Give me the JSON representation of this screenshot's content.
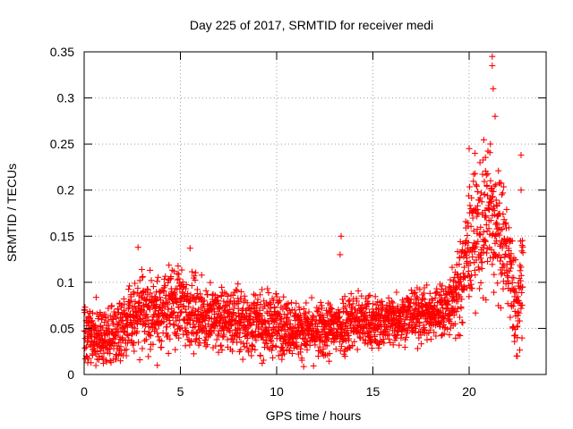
{
  "chart_data": {
    "type": "scatter",
    "title": "Day 225 of 2017, SRMTID for receiver medi",
    "xlabel": "GPS time / hours",
    "ylabel": "SRMTID / TECUs",
    "xlim": [
      0,
      24
    ],
    "ylim": [
      0,
      0.35
    ],
    "x_ticks": [
      0,
      5,
      10,
      15,
      20
    ],
    "x_tick_labels": [
      "0",
      "5",
      "10",
      "15",
      "20"
    ],
    "y_ticks": [
      0,
      0.05,
      0.1,
      0.15,
      0.2,
      0.25,
      0.3,
      0.35
    ],
    "y_tick_labels": [
      "0",
      "0.05",
      "0.1",
      "0.15",
      "0.2",
      "0.25",
      "0.3",
      "0.35"
    ],
    "grid": true,
    "marker": "plus",
    "color": "#ff0000",
    "data_range_hours": [
      0,
      22.8
    ],
    "trend": [
      {
        "x": 0.0,
        "mean": 0.045,
        "spread": 0.03
      },
      {
        "x": 1.0,
        "mean": 0.035,
        "spread": 0.025
      },
      {
        "x": 2.0,
        "mean": 0.055,
        "spread": 0.03
      },
      {
        "x": 3.0,
        "mean": 0.065,
        "spread": 0.035
      },
      {
        "x": 4.0,
        "mean": 0.07,
        "spread": 0.035
      },
      {
        "x": 5.0,
        "mean": 0.075,
        "spread": 0.04
      },
      {
        "x": 6.0,
        "mean": 0.065,
        "spread": 0.03
      },
      {
        "x": 7.0,
        "mean": 0.06,
        "spread": 0.03
      },
      {
        "x": 8.0,
        "mean": 0.06,
        "spread": 0.03
      },
      {
        "x": 9.0,
        "mean": 0.055,
        "spread": 0.03
      },
      {
        "x": 10.0,
        "mean": 0.055,
        "spread": 0.03
      },
      {
        "x": 11.0,
        "mean": 0.05,
        "spread": 0.025
      },
      {
        "x": 12.0,
        "mean": 0.045,
        "spread": 0.025
      },
      {
        "x": 13.0,
        "mean": 0.05,
        "spread": 0.03
      },
      {
        "x": 14.0,
        "mean": 0.06,
        "spread": 0.03
      },
      {
        "x": 15.0,
        "mean": 0.055,
        "spread": 0.025
      },
      {
        "x": 16.0,
        "mean": 0.06,
        "spread": 0.025
      },
      {
        "x": 17.0,
        "mean": 0.065,
        "spread": 0.025
      },
      {
        "x": 18.0,
        "mean": 0.065,
        "spread": 0.025
      },
      {
        "x": 19.0,
        "mean": 0.075,
        "spread": 0.03
      },
      {
        "x": 19.5,
        "mean": 0.09,
        "spread": 0.04
      },
      {
        "x": 20.0,
        "mean": 0.14,
        "spread": 0.06
      },
      {
        "x": 20.5,
        "mean": 0.16,
        "spread": 0.06
      },
      {
        "x": 21.0,
        "mean": 0.17,
        "spread": 0.08
      },
      {
        "x": 21.5,
        "mean": 0.15,
        "spread": 0.06
      },
      {
        "x": 22.0,
        "mean": 0.13,
        "spread": 0.05
      },
      {
        "x": 22.5,
        "mean": 0.06,
        "spread": 0.04
      },
      {
        "x": 22.8,
        "mean": 0.12,
        "spread": 0.06
      }
    ],
    "notable_points": [
      {
        "x": 21.2,
        "y": 0.345
      },
      {
        "x": 21.2,
        "y": 0.335
      },
      {
        "x": 21.25,
        "y": 0.31
      },
      {
        "x": 21.35,
        "y": 0.28
      },
      {
        "x": 21.1,
        "y": 0.25
      },
      {
        "x": 20.0,
        "y": 0.245
      },
      {
        "x": 20.3,
        "y": 0.24
      },
      {
        "x": 22.7,
        "y": 0.238
      },
      {
        "x": 22.7,
        "y": 0.2
      },
      {
        "x": 13.35,
        "y": 0.15
      },
      {
        "x": 13.3,
        "y": 0.13
      },
      {
        "x": 2.8,
        "y": 0.138
      },
      {
        "x": 5.5,
        "y": 0.137
      },
      {
        "x": 3.8,
        "y": 0.01
      },
      {
        "x": 1.0,
        "y": 0.012
      },
      {
        "x": 22.5,
        "y": 0.02
      },
      {
        "x": 22.75,
        "y": 0.14
      }
    ]
  }
}
